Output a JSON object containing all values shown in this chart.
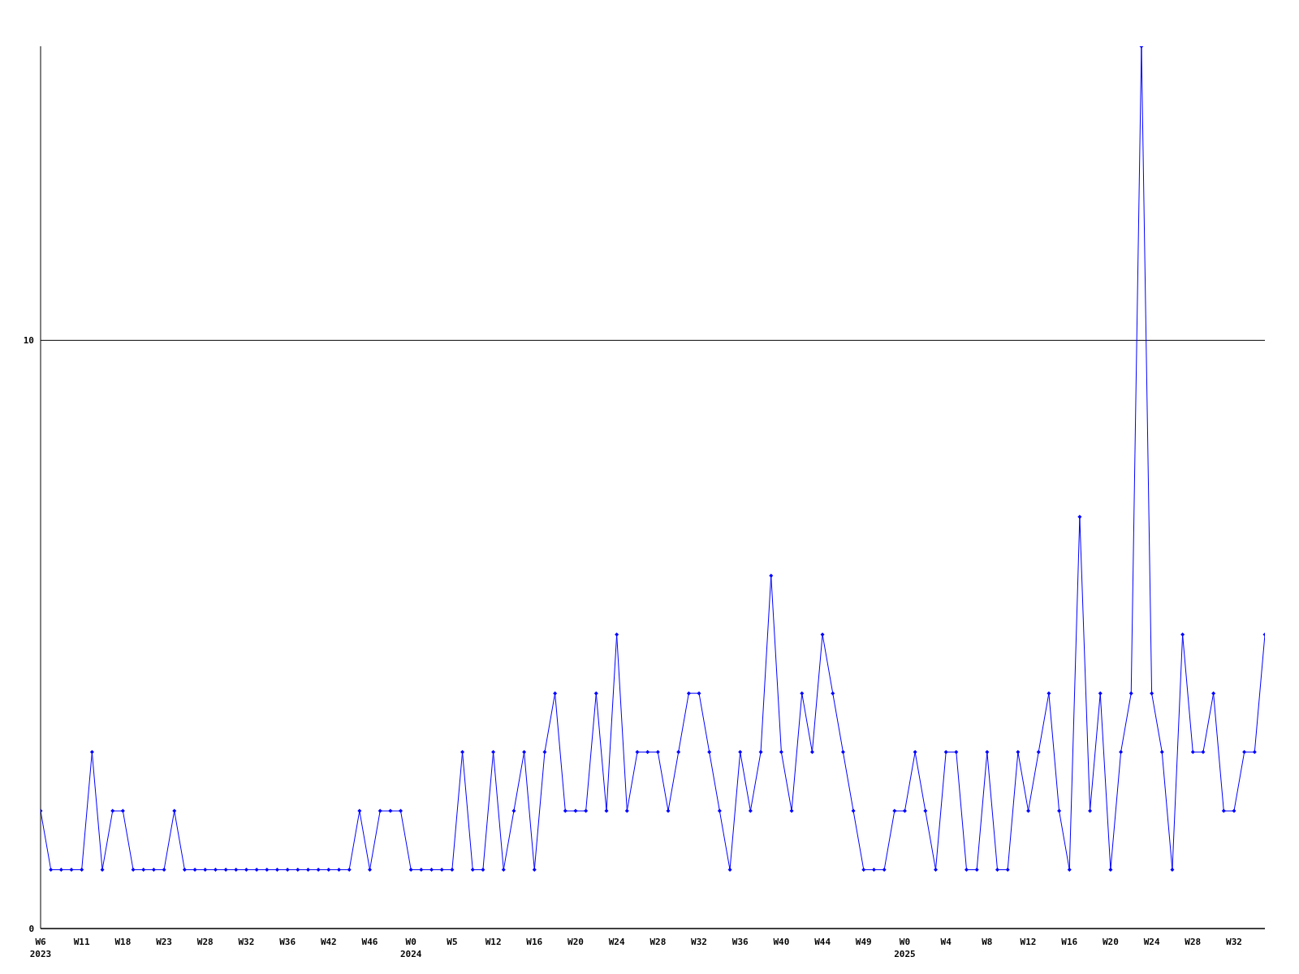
{
  "chart_data": {
    "type": "line",
    "categories": [
      "W6\n2023",
      null,
      null,
      null,
      "W11",
      null,
      null,
      null,
      "W18",
      null,
      null,
      null,
      "W23",
      null,
      null,
      null,
      "W28",
      null,
      null,
      null,
      "W32",
      null,
      null,
      null,
      "W36",
      null,
      null,
      null,
      "W42",
      null,
      null,
      null,
      "W46",
      null,
      null,
      null,
      "W0\n2024",
      null,
      null,
      null,
      "W5",
      null,
      null,
      null,
      "W12",
      null,
      null,
      null,
      "W16",
      null,
      null,
      null,
      "W20",
      null,
      null,
      null,
      "W24",
      null,
      null,
      null,
      "W28",
      null,
      null,
      null,
      "W32",
      null,
      null,
      null,
      "W36",
      null,
      null,
      null,
      "W40",
      null,
      null,
      null,
      "W44",
      null,
      null,
      null,
      "W49",
      null,
      null,
      null,
      "W0\n2025",
      null,
      null,
      null,
      "W4",
      null,
      null,
      null,
      "W8",
      null,
      null,
      null,
      "W12",
      null,
      null,
      null,
      "W16",
      null,
      null,
      null,
      "W20",
      null,
      null,
      null,
      "W24",
      null,
      null,
      null,
      "W28",
      null,
      null,
      null,
      "W32",
      null,
      null,
      null
    ],
    "series": [
      {
        "color": "#0000ff",
        "values": [
          2,
          1,
          1,
          1,
          1,
          3,
          1,
          2,
          2,
          1,
          1,
          1,
          1,
          2,
          1,
          1,
          1,
          1,
          1,
          1,
          1,
          1,
          1,
          1,
          1,
          1,
          1,
          1,
          1,
          1,
          1,
          2,
          1,
          2,
          2,
          2,
          1,
          1,
          1,
          1,
          1,
          3,
          1,
          1,
          3,
          1,
          2,
          3,
          1,
          3,
          4,
          2,
          2,
          2,
          4,
          2,
          5,
          2,
          3,
          3,
          3,
          2,
          3,
          4,
          4,
          3,
          2,
          1,
          3,
          2,
          3,
          6,
          3,
          2,
          4,
          3,
          5,
          4,
          3,
          2,
          1,
          1,
          1,
          2,
          2,
          3,
          2,
          1,
          3,
          3,
          1,
          1,
          3,
          1,
          1,
          3,
          2,
          3,
          4,
          2,
          1,
          7,
          2,
          4,
          1,
          3,
          4,
          15,
          4,
          3,
          1,
          5,
          3,
          3,
          4,
          2,
          2,
          3,
          3,
          5
        ]
      }
    ],
    "ylim": [
      0,
      15
    ],
    "yticks": [
      0,
      10
    ],
    "grid": "y",
    "marker": "diamond",
    "line_style": "solid"
  }
}
